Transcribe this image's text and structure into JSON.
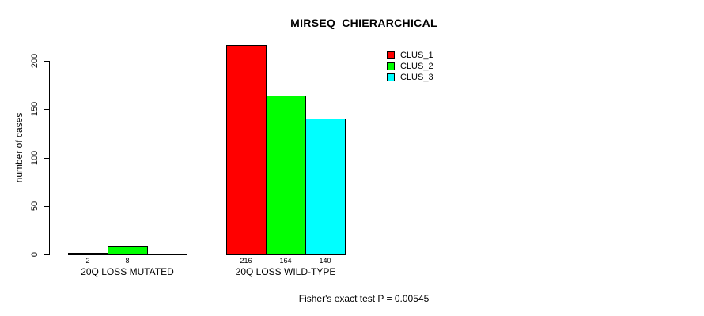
{
  "chart_data": {
    "type": "bar",
    "title": "MIRSEQ_CHIERARCHICAL",
    "xlabel": "",
    "ylabel": "number of cases",
    "ylim": [
      0,
      200
    ],
    "yticks": [
      0,
      50,
      100,
      150,
      200
    ],
    "grid": false,
    "legend_position": "top-right",
    "categories": [
      "20Q LOSS MUTATED",
      "20Q LOSS WILD-TYPE"
    ],
    "series": [
      {
        "name": "CLUS_1",
        "color": "#FF0000",
        "values": [
          2,
          216
        ]
      },
      {
        "name": "CLUS_2",
        "color": "#00FF00",
        "values": [
          8,
          164
        ]
      },
      {
        "name": "CLUS_3",
        "color": "#00FFFF",
        "values": [
          0,
          140
        ]
      }
    ],
    "bar_labels": [
      [
        "2",
        "8",
        ""
      ],
      [
        "216",
        "164",
        "140"
      ]
    ],
    "annotation": "Fisher's exact test P = 0.00545"
  }
}
